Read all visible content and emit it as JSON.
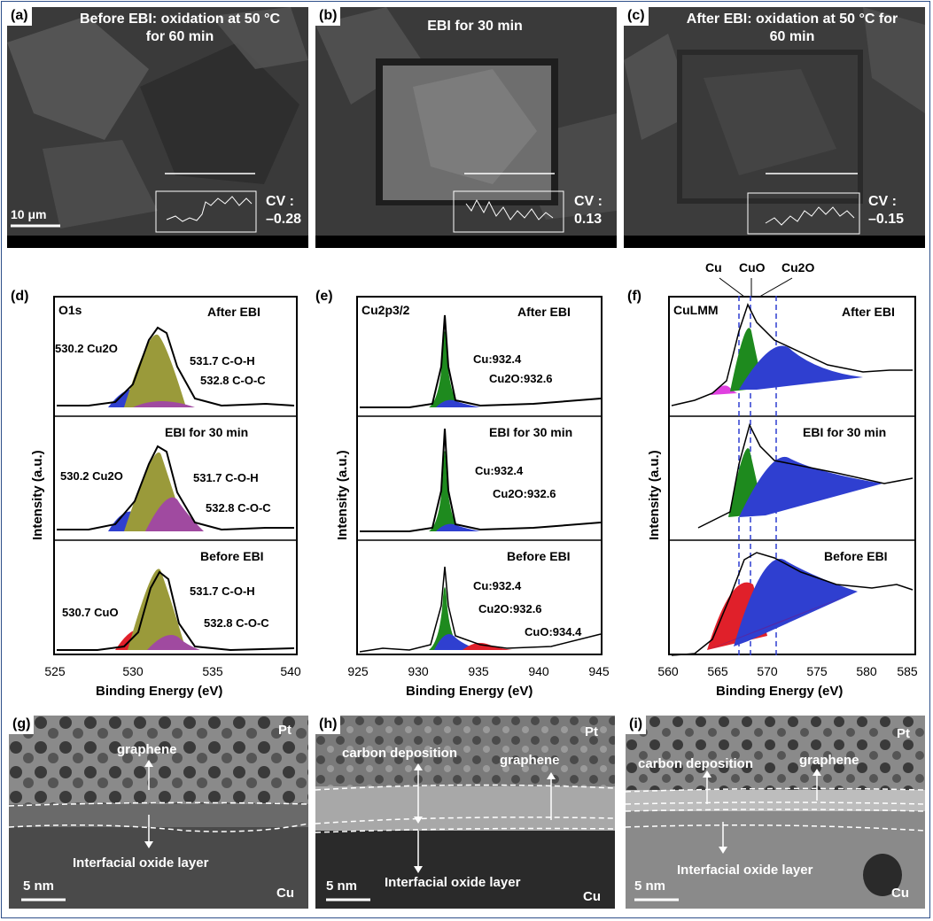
{
  "sem_panels": [
    {
      "label": "(a)",
      "caption_line1": "Before EBI: oxidation at 50 °C",
      "caption_line2": "for 60 min",
      "cv_label": "CV :",
      "cv_value": "–0.28",
      "scale": "10 μm"
    },
    {
      "label": "(b)",
      "caption_line1": "EBI for 30 min",
      "caption_line2": "",
      "cv_label": "CV :",
      "cv_value": "0.13",
      "scale": ""
    },
    {
      "label": "(c)",
      "caption_line1": "After EBI: oxidation at 50 °C for",
      "caption_line2": "60 min",
      "cv_label": "CV :",
      "cv_value": "–0.15",
      "scale": ""
    }
  ],
  "xps_panels": [
    {
      "label": "(d)",
      "element": "O1s",
      "xlabel": "Binding Energy (eV)",
      "ylabel": "Intensity (a.u.)",
      "xticks": [
        "525",
        "530",
        "535",
        "540"
      ],
      "rows": [
        {
          "state": "After EBI",
          "annotations": [
            "530.2 Cu2O",
            "531.7 C-O-H",
            "532.8 C-O-C"
          ]
        },
        {
          "state": "EBI for 30 min",
          "annotations": [
            "530.2 Cu2O",
            "531.7 C-O-H",
            "532.8 C-O-C"
          ]
        },
        {
          "state": "Before EBI",
          "annotations": [
            "530.7 CuO",
            "531.7 C-O-H",
            "532.8 C-O-C"
          ]
        }
      ]
    },
    {
      "label": "(e)",
      "element": "Cu2p3/2",
      "xlabel": "Binding Energy (eV)",
      "ylabel": "Intensity (a.u.)",
      "xticks": [
        "925",
        "930",
        "935",
        "940",
        "945"
      ],
      "rows": [
        {
          "state": "After EBI",
          "annotations": [
            "Cu:932.4",
            "Cu2O:932.6"
          ]
        },
        {
          "state": "EBI for 30 min",
          "annotations": [
            "Cu:932.4",
            "Cu2O:932.6"
          ]
        },
        {
          "state": "Before EBI",
          "annotations": [
            "Cu:932.4",
            "Cu2O:932.6",
            "CuO:934.4"
          ]
        }
      ]
    },
    {
      "label": "(f)",
      "element": "CuLMM",
      "xlabel": "Binding Energy (eV)",
      "ylabel": "Intensity (a.u.)",
      "xticks": [
        "560",
        "565",
        "570",
        "575",
        "580",
        "585"
      ],
      "top_labels": [
        "Cu",
        "CuO",
        "Cu2O"
      ],
      "rows": [
        {
          "state": "After EBI",
          "annotations": []
        },
        {
          "state": "EBI for 30 min",
          "annotations": []
        },
        {
          "state": "Before EBI",
          "annotations": []
        }
      ]
    }
  ],
  "tem_panels": [
    {
      "label": "(g)",
      "pt": "Pt",
      "cu": "Cu",
      "scale": "5 nm",
      "texts": [
        "graphene",
        "Interfacial oxide layer"
      ]
    },
    {
      "label": "(h)",
      "pt": "Pt",
      "cu": "Cu",
      "scale": "5 nm",
      "texts": [
        "carbon deposition",
        "graphene",
        "Interfacial oxide layer"
      ]
    },
    {
      "label": "(i)",
      "pt": "Pt",
      "cu": "Cu",
      "scale": "5 nm",
      "texts": [
        "carbon deposition",
        "graphene",
        "Interfacial oxide layer"
      ]
    }
  ],
  "colors": {
    "cu_green": "#1e8a1e",
    "cu2o_blue": "#2f3fd0",
    "coh_olive": "#9a9a3a",
    "coc_purple": "#a04aa0",
    "cuo_red": "#e0202a",
    "magenta": "#e040e0"
  }
}
